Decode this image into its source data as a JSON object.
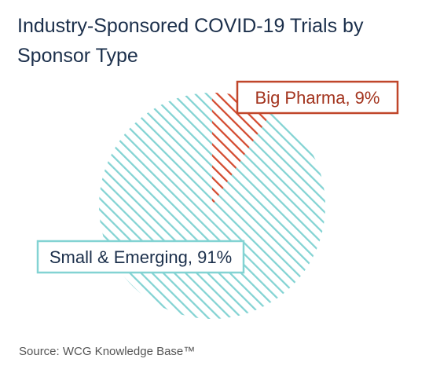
{
  "chart_data": {
    "type": "pie",
    "title": "Industry-Sponsored COVID-19 Trials by Sponsor Type",
    "slices": [
      {
        "label": "Big Pharma",
        "value": 9,
        "display": "Big Pharma, 9%",
        "color": "#d34a2f"
      },
      {
        "label": "Small & Emerging",
        "value": 91,
        "display": "Small & Emerging, 91%",
        "color": "#83d3d3"
      }
    ],
    "fill_pattern": "diagonal-hatch",
    "start_angle": "12 o'clock, clockwise",
    "legend": "callout boxes"
  },
  "source": "Source: WCG Knowledge Base™",
  "colors": {
    "title": "#1b2f4b",
    "big_pharma_box_border": "#c0462a",
    "big_pharma_text": "#a3341e",
    "small_box_border": "#83d3d3",
    "small_text": "#1b2f4b"
  }
}
